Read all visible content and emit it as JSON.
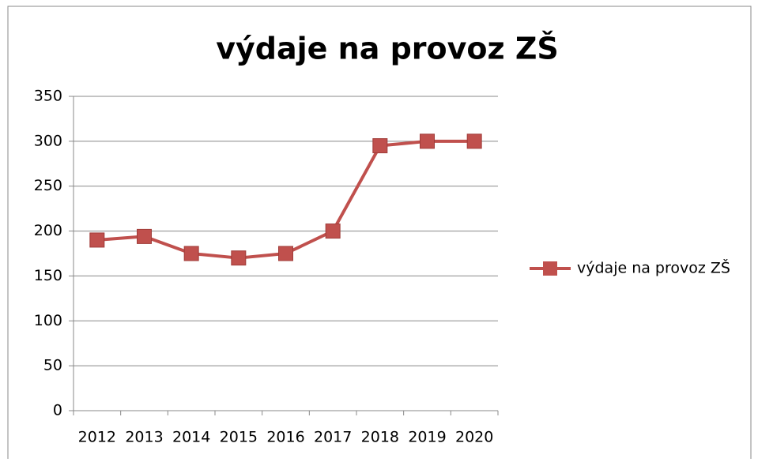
{
  "chart_data": {
    "type": "line",
    "title": "výdaje na provoz ZŠ",
    "categories": [
      "2012",
      "2013",
      "2014",
      "2015",
      "2016",
      "2017",
      "2018",
      "2019",
      "2020"
    ],
    "series": [
      {
        "name": "výdaje na provoz ZŠ",
        "color": "#c0504d",
        "values": [
          190,
          194,
          175,
          170,
          175,
          200,
          295,
          300,
          300
        ]
      }
    ],
    "ylim": [
      0,
      350
    ],
    "yticks": [
      0,
      50,
      100,
      150,
      200,
      250,
      300,
      350
    ],
    "grid": true,
    "legend": "right"
  }
}
